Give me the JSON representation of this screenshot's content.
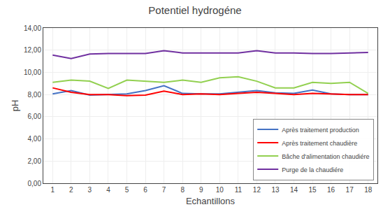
{
  "chart_data": {
    "type": "line",
    "title": "Potentiel hydrogéne",
    "xlabel": "Echantillons",
    "ylabel": "pH",
    "x": [
      1,
      2,
      3,
      4,
      5,
      6,
      7,
      8,
      9,
      10,
      11,
      12,
      13,
      14,
      15,
      16,
      17,
      18
    ],
    "xlim": [
      0.5,
      18.5
    ],
    "xticks": [
      1,
      2,
      3,
      4,
      5,
      6,
      7,
      8,
      9,
      10,
      11,
      12,
      13,
      14,
      15,
      16,
      17,
      18
    ],
    "ylim": [
      0,
      14
    ],
    "yticks": [
      {
        "value": 0.0,
        "label": "0,00"
      },
      {
        "value": 2.0,
        "label": "2,00"
      },
      {
        "value": 4.0,
        "label": "4,00"
      },
      {
        "value": 6.0,
        "label": "6,00"
      },
      {
        "value": 8.0,
        "label": "8,00"
      },
      {
        "value": 10.0,
        "label": "10,00"
      },
      {
        "value": 12.0,
        "label": "12,00"
      },
      {
        "value": 14.0,
        "label": "14,00"
      }
    ],
    "grid": true,
    "legend": "lower right",
    "series": [
      {
        "name": "Après traitement production",
        "color": "#4472C4",
        "values": [
          8.05,
          8.35,
          7.95,
          8.0,
          8.05,
          8.35,
          8.8,
          8.1,
          8.05,
          8.05,
          8.2,
          8.35,
          8.15,
          8.1,
          8.4,
          8.05,
          8.0,
          8.0
        ]
      },
      {
        "name": "Après traitement chaudière",
        "color": "#FF0000",
        "values": [
          8.6,
          8.2,
          8.0,
          8.0,
          7.9,
          7.95,
          8.3,
          8.0,
          8.05,
          8.0,
          8.1,
          8.2,
          8.1,
          8.0,
          8.1,
          8.05,
          8.0,
          8.0
        ]
      },
      {
        "name": "Bâche d'alimentation chaudiére",
        "color": "#92D050",
        "values": [
          9.1,
          9.3,
          9.2,
          8.55,
          9.3,
          9.2,
          9.1,
          9.3,
          9.1,
          9.5,
          9.6,
          9.2,
          8.6,
          8.6,
          9.1,
          9.0,
          9.1,
          8.1
        ]
      },
      {
        "name": "Purge de la chaudiére",
        "color": "#7030A0",
        "values": [
          11.55,
          11.25,
          11.65,
          11.7,
          11.7,
          11.7,
          11.95,
          11.75,
          11.75,
          11.75,
          11.75,
          11.95,
          11.75,
          11.75,
          11.7,
          11.7,
          11.75,
          11.8
        ]
      }
    ]
  }
}
